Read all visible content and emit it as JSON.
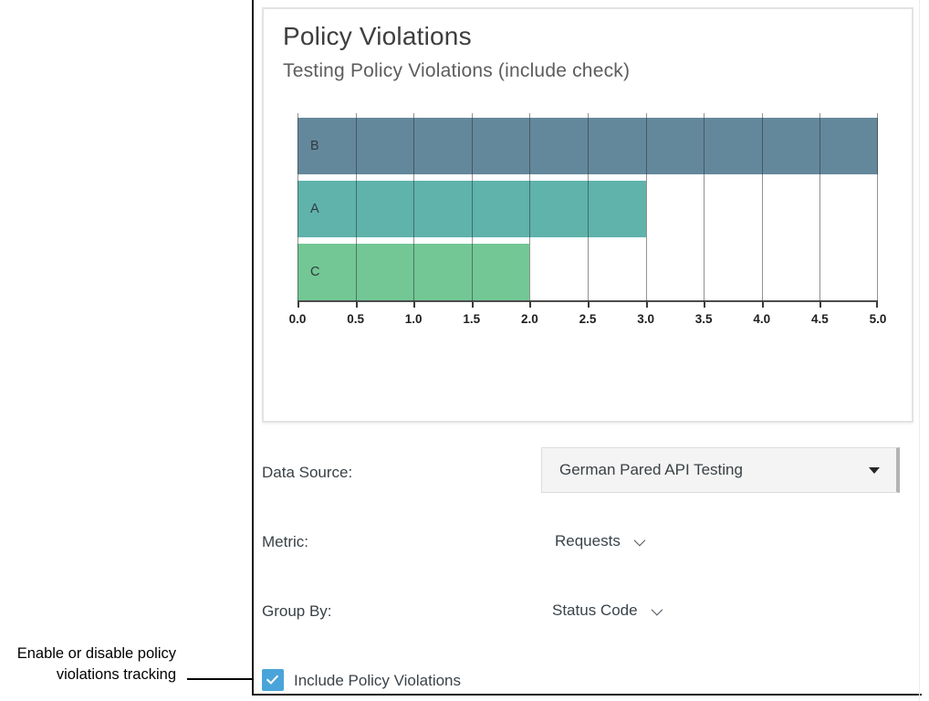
{
  "annotation": {
    "line1": "Enable or disable policy",
    "line2": "violations tracking"
  },
  "panel": {
    "title": "Policy Violations",
    "subtitle": "Testing Policy Violations (include check)"
  },
  "chart_data": {
    "type": "bar",
    "orientation": "horizontal",
    "title": "Policy Violations",
    "subtitle": "Testing Policy Violations (include check)",
    "categories": [
      "B",
      "A",
      "C"
    ],
    "values": [
      5.0,
      3.0,
      2.0
    ],
    "bar_colors": [
      "#64889b",
      "#5fb3ab",
      "#72c795"
    ],
    "xlim": [
      0,
      5
    ],
    "xticks": [
      0.0,
      0.5,
      1.0,
      1.5,
      2.0,
      2.5,
      3.0,
      3.5,
      4.0,
      4.5,
      5.0
    ],
    "grid": "vertical",
    "legend": "none"
  },
  "form": {
    "data_source": {
      "label": "Data Source:",
      "value": "German Pared API Testing"
    },
    "metric": {
      "label": "Metric:",
      "value": "Requests"
    },
    "group_by": {
      "label": "Group By:",
      "value": "Status Code"
    },
    "include_policy_violations": {
      "label": "Include Policy Violations",
      "checked": true
    }
  },
  "colors": {
    "checkbox_blue": "#4aa4da",
    "panel_border": "#e3e3e3",
    "gridline": "#2d2d2d",
    "axis": "#4c4c4c"
  }
}
